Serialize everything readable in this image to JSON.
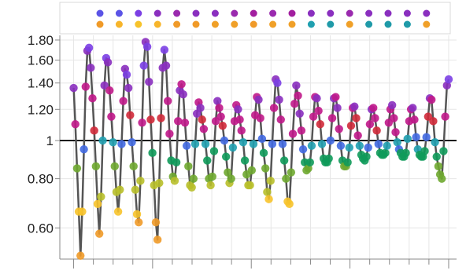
{
  "chart_data": {
    "type": "line",
    "title": "",
    "xlabel": "",
    "ylabel": "",
    "y_scale": "log",
    "ylim": [
      0.5,
      1.85
    ],
    "xlim": [
      0.3,
      20.4
    ],
    "reference_line": 1,
    "grid": true,
    "legend": "top (unlabeled color swatches)",
    "y_ticks": [
      0.6,
      0.8,
      1,
      1.2,
      1.4,
      1.6,
      1.8
    ],
    "y_tick_labels": [
      "0.60",
      "0.80",
      "1",
      "1.20",
      "1.40",
      "1.60",
      "1.80"
    ],
    "colors": {
      "grid": "#e6e6e6",
      "line": "#555555",
      "reference": "#111111",
      "axis": "#888888",
      "point_palette": [
        "#7b3fe4",
        "#4169e1",
        "#20a0b0",
        "#109a5a",
        "#6fa830",
        "#b8bf2a",
        "#f7c32b",
        "#f09a28",
        "#e2522e",
        "#d02a3a",
        "#c0188a",
        "#8a2fbf"
      ]
    },
    "legend_rows": [
      [
        "#5b54e6",
        "#5b54e6",
        "#7b3fe4",
        "#8a2fbf",
        "#9a2aae",
        "#8a2fbf",
        "#8a2fbf",
        "#9a2aae",
        "#a21f9f",
        "#9a2aae",
        "#a21f9f",
        "#8a2fbf",
        "#8a2fbf",
        "#9a2aae",
        "#8a2fbf",
        "#8a2fbf",
        "#8a2fbf",
        "#8a2fbf"
      ],
      [
        "#f09a28",
        "#f7b52b",
        "#f7c32b",
        "#f7b52b",
        "#f09a28",
        "#f09a28",
        "#f0a028",
        "#f0a028",
        "#f09a28",
        "#f0a028",
        "#f0a028",
        "#20a0b0",
        "#1f9aa8",
        "#f0a028",
        "#1f9aa8",
        "#1f9aa8",
        "#1f9aa8",
        "#f0a028"
      ]
    ],
    "series": [
      {
        "values": [
          1.36,
          1.1,
          0.85,
          0.66,
          0.51,
          0.66,
          0.95,
          1.37,
          1.69,
          1.72,
          1.53,
          1.28,
          1.06,
          0.86,
          0.69,
          0.58,
          0.72,
          1.0,
          1.38,
          1.62,
          1.58,
          1.34,
          1.15,
          0.99,
          0.86,
          0.74,
          0.66,
          0.75,
          0.98,
          1.26,
          1.52,
          1.47,
          1.36,
          1.16,
          0.99,
          0.86,
          0.75,
          0.65,
          0.62,
          0.79,
          1.11,
          1.55,
          1.78,
          1.73,
          1.41,
          1.13,
          0.93,
          0.77,
          0.62,
          0.56,
          0.78,
          1.14,
          1.53,
          1.7,
          1.55,
          1.26,
          1.04,
          0.89,
          0.81,
          0.79,
          0.88,
          1.12,
          1.34,
          1.39,
          1.31,
          1.11,
          0.97,
          0.86,
          0.77,
          0.76,
          0.8,
          0.98,
          1.17,
          1.25,
          1.21,
          1.13,
          1.07,
          0.98,
          0.89,
          0.8,
          0.77,
          0.81,
          0.94,
          1.12,
          1.26,
          1.21,
          1.15,
          1.09,
          1.0,
          0.91,
          0.83,
          0.78,
          0.8,
          0.96,
          1.12,
          1.23,
          1.2,
          1.13,
          1.06,
          0.99,
          0.89,
          0.82,
          0.77,
          0.77,
          0.84,
          0.98,
          1.16,
          1.29,
          1.27,
          1.14,
          1.01,
          0.93,
          0.85,
          0.74,
          0.71,
          0.79,
          0.98,
          1.21,
          1.43,
          1.4,
          1.27,
          1.13,
          0.98,
          0.89,
          0.8,
          0.7,
          0.69,
          0.83,
          1.04,
          1.24,
          1.38,
          1.3,
          1.17,
          1.06,
          0.95,
          0.88,
          0.84,
          0.85,
          0.88,
          0.97,
          1.15,
          1.29,
          1.28,
          1.19,
          1.1,
          0.98,
          0.9,
          0.88,
          0.88,
          0.9,
          1.0,
          1.14,
          1.28,
          1.29,
          1.21,
          1.07,
          0.97,
          0.89,
          0.86,
          0.86,
          0.88,
          0.96,
          1.09,
          1.21,
          1.22,
          1.14,
          1.03,
          0.97,
          0.92,
          0.9,
          0.89,
          0.91,
          0.96,
          1.1,
          1.2,
          1.21,
          1.14,
          1.06,
          0.98,
          0.93,
          0.92,
          0.92,
          0.93,
          0.97,
          1.11,
          1.2,
          1.23,
          1.14,
          1.05,
          0.99,
          0.95,
          0.93,
          0.91,
          0.91,
          0.93,
          1.01,
          1.12,
          1.2,
          1.21,
          1.13,
          1.02,
          0.95,
          0.92,
          0.91,
          0.91,
          0.94,
          1.02,
          1.15,
          1.28,
          1.27,
          1.12,
          0.99,
          0.91,
          0.86,
          0.82,
          0.8,
          0.94,
          1.15,
          1.38,
          1.43
        ]
      }
    ]
  }
}
